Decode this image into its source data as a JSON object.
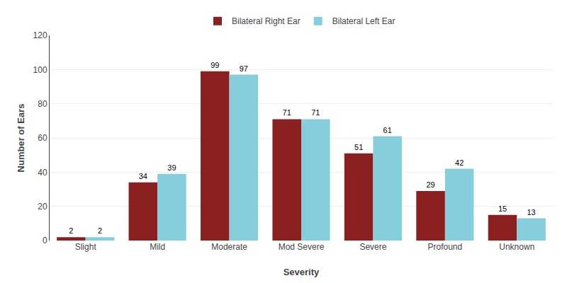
{
  "chart_data": {
    "type": "bar",
    "categories": [
      "Slight",
      "Mild",
      "Moderate",
      "Mod Severe",
      "Severe",
      "Profound",
      "Unknown"
    ],
    "series": [
      {
        "name": "Bilateral Right Ear",
        "color": "#8B2020",
        "values": [
          2,
          34,
          99,
          71,
          51,
          29,
          15
        ]
      },
      {
        "name": "Bilateral Left Ear",
        "color": "#87CEDC",
        "values": [
          2,
          39,
          97,
          71,
          61,
          42,
          13
        ]
      }
    ],
    "xlabel": "Severity",
    "ylabel": "Number of Ears",
    "ylim": [
      0,
      120
    ],
    "yticks": [
      0,
      20,
      40,
      60,
      80,
      100,
      120
    ],
    "grid": true,
    "data_labels": true,
    "legend": "top"
  }
}
